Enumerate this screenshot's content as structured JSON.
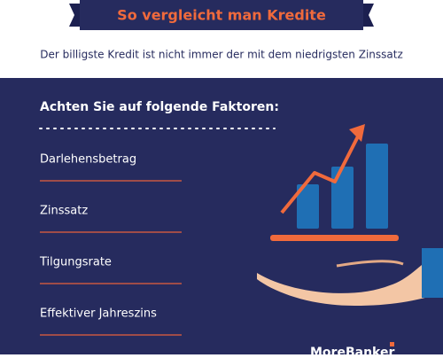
{
  "header": {
    "title": "So vergleicht man Kredite",
    "subtitle": "Der billigste Kredit ist nicht immer der mit dem niedrigsten Zinssatz"
  },
  "section": {
    "heading": "Achten Sie auf folgende Faktoren:",
    "items": [
      "Darlehensbetrag",
      "Zinssatz",
      "Tilgungsrate",
      "Effektiver Jahreszins"
    ]
  },
  "footer": {
    "logo": "MoreBanker"
  }
}
